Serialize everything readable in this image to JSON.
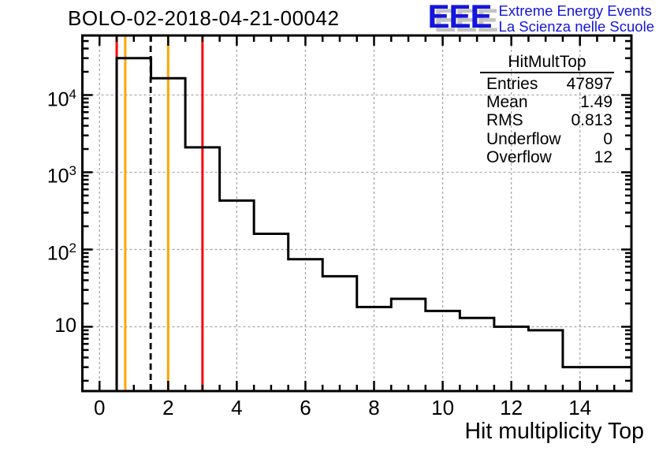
{
  "title": "BOLO-02-2018-04-21-00042",
  "logo": {
    "acronym": "EEE",
    "line1": "Extreme Energy Events",
    "line2": "La Scienza nelle Scuole",
    "color": "#1515dd",
    "shadow_color": "#c3c3c3"
  },
  "stats": {
    "header": "HitMultTop",
    "rows": [
      {
        "label": "Entries",
        "value": "47897"
      },
      {
        "label": "Mean",
        "value": "1.49"
      },
      {
        "label": "RMS",
        "value": "0.813"
      },
      {
        "label": "Underflow",
        "value": "0"
      },
      {
        "label": "Overflow",
        "value": "12"
      }
    ]
  },
  "chart_data": {
    "type": "bar",
    "style": "step-histogram",
    "title": "BOLO-02-2018-04-21-00042",
    "xlabel": "Hit multiplicity Top",
    "ylabel": "",
    "ylog": true,
    "xlim": [
      -0.5,
      15.5
    ],
    "ylim": [
      1.47,
      59000
    ],
    "bin_start": 0.5,
    "bin_width": 1,
    "categories": [
      1,
      2,
      3,
      4,
      5,
      6,
      7,
      8,
      9,
      10,
      11,
      12,
      13,
      14,
      15
    ],
    "values": [
      30000,
      16500,
      2100,
      430,
      160,
      75,
      45,
      18,
      23,
      16,
      13,
      10,
      9,
      3,
      3
    ],
    "x_ticks_major": [
      0,
      2,
      4,
      6,
      8,
      10,
      12,
      14
    ],
    "x_minor_step": 0.5,
    "y_ticks": [
      {
        "value": 10,
        "base": "10",
        "exp": ""
      },
      {
        "value": 100,
        "base": "10",
        "exp": "2"
      },
      {
        "value": 1000,
        "base": "10",
        "exp": "3"
      },
      {
        "value": 10000,
        "base": "10",
        "exp": "4"
      }
    ],
    "grid": {
      "x": [
        0,
        2,
        4,
        6,
        8,
        10,
        12,
        14
      ],
      "y": [
        10,
        100,
        1000,
        10000
      ]
    },
    "marker_lines": [
      {
        "x": 0.5,
        "color": "#ff0000",
        "style": "solid",
        "name": "red-threshold-low"
      },
      {
        "x": 0.75,
        "color": "#ffa500",
        "style": "solid",
        "name": "orange-threshold-low"
      },
      {
        "x": 1.49,
        "color": "#000000",
        "style": "dashed",
        "name": "mean-line"
      },
      {
        "x": 2,
        "color": "#ffa500",
        "style": "solid",
        "name": "orange-threshold-high"
      },
      {
        "x": 3,
        "color": "#ff0000",
        "style": "solid",
        "name": "red-threshold-high"
      }
    ],
    "colors": {
      "line": "#000000",
      "grid": "#a8a8a8",
      "frame": "#000000"
    }
  }
}
